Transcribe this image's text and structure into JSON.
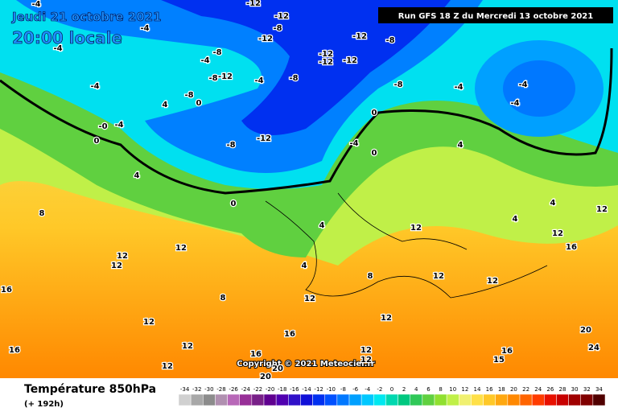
{
  "header": {
    "date": "Jeudi 21 octobre 2021",
    "time": "20:00 locale",
    "run": "Run GFS 18 Z du Mercredi 13 octobre 2021"
  },
  "copyright": "Copyright © 2021 Meteociel.fr",
  "footer": {
    "title": "Température 850hPa",
    "subtitle": "(+ 192h)"
  },
  "colorbar": {
    "ticks": [
      -34,
      -32,
      -30,
      -28,
      -26,
      -24,
      -22,
      -20,
      -18,
      -16,
      -14,
      -12,
      -10,
      -8,
      -6,
      -4,
      -2,
      0,
      2,
      4,
      6,
      8,
      10,
      12,
      14,
      16,
      18,
      20,
      22,
      24,
      26,
      28,
      30,
      32,
      34
    ],
    "colors": [
      "#d0d0d0",
      "#a8a8a8",
      "#8c8c8c",
      "#b090b0",
      "#b868b8",
      "#983098",
      "#782088",
      "#600090",
      "#5000b0",
      "#3010c8",
      "#1010d8",
      "#0030f0",
      "#0050ff",
      "#0078ff",
      "#00a0ff",
      "#00c8ff",
      "#00e8f0",
      "#00d8b0",
      "#00c880",
      "#30c858",
      "#60d040",
      "#90e030",
      "#c0f048",
      "#f0f070",
      "#ffe048",
      "#ffc828",
      "#ffa810",
      "#ff8800",
      "#ff6400",
      "#ff3c00",
      "#e81000",
      "#c80000",
      "#a00000",
      "#800000",
      "#500000"
    ]
  },
  "contour_labels": [
    "-4",
    "-4",
    "-4",
    "-4",
    "-8",
    "-12",
    "-8",
    "-8",
    "0",
    "-4",
    "-8",
    "-12",
    "-12",
    "-8",
    "-12",
    "-12",
    "-12",
    "-12",
    "-12",
    "-8",
    "-8",
    "-4",
    "-4",
    "-4",
    "-4",
    "4",
    "-0",
    "-4",
    "0",
    "-8",
    "-12",
    "-4",
    "0",
    "0",
    "4",
    "0",
    "8",
    "4",
    "4",
    "4",
    "12",
    "4",
    "4",
    "12",
    "12",
    "16",
    "12",
    "12",
    "12",
    "16",
    "8",
    "12",
    "12",
    "8",
    "12",
    "12",
    "12",
    "16",
    "16",
    "12",
    "16",
    "16",
    "15",
    "12",
    "12",
    "20",
    "24",
    "12",
    "20",
    "20"
  ]
}
